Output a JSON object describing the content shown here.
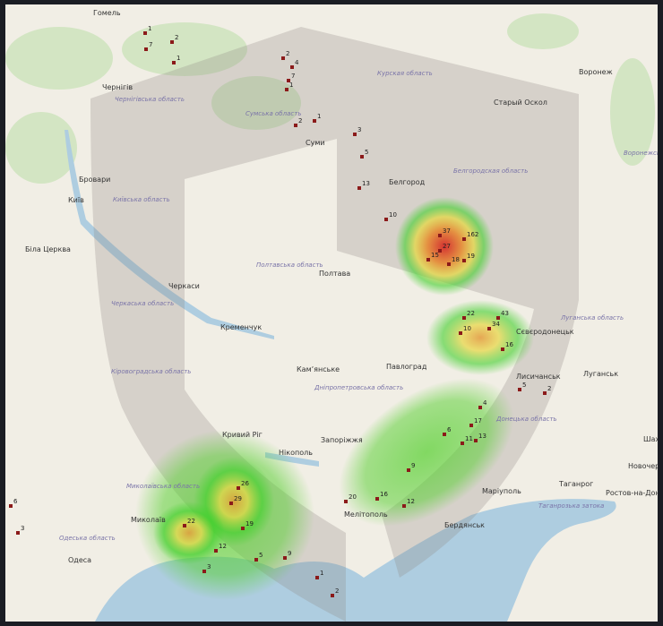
{
  "map": {
    "cities": [
      "Гомель",
      "Чернігів",
      "Бровари",
      "Київ",
      "Біла Церква",
      "Черкаси",
      "Полтава",
      "Суми",
      "Воронеж",
      "Старый Оскол",
      "Белгород",
      "Кременчук",
      "Кривий Ріг",
      "Миколаїв",
      "Одеса",
      "Камʼянське",
      "Павлоград",
      "Запоріжжя",
      "Маріуполь",
      "Таганрог",
      "Ростов-на-Дону",
      "Луганськ",
      "Новочеркаськ",
      "Шахти",
      "Мелітополь",
      "Бердянськ",
      "Нікополь",
      "Лисичанськ",
      "Сєвєродонецьк"
    ],
    "regions": [
      "Чернігівська область",
      "Сумська область",
      "Курская область",
      "Київська область",
      "Полтавська область",
      "Черкаська область",
      "Белгородская область",
      "Воронежская область",
      "Кіровоградська область",
      "Дніпропетровська область",
      "Миколаївська область",
      "Одеська область",
      "Донецька область",
      "Луганська область",
      "Таганрозька затока"
    ],
    "markers": [
      {
        "count": "1"
      },
      {
        "count": "7"
      },
      {
        "count": "2"
      },
      {
        "count": "1"
      },
      {
        "count": "2"
      },
      {
        "count": "4"
      },
      {
        "count": "7"
      },
      {
        "count": "1"
      },
      {
        "count": "2"
      },
      {
        "count": "1"
      },
      {
        "count": "3"
      },
      {
        "count": "5"
      },
      {
        "count": "13"
      },
      {
        "count": "10"
      },
      {
        "count": "37"
      },
      {
        "count": "162"
      },
      {
        "count": "18"
      },
      {
        "count": "19"
      },
      {
        "count": "27"
      },
      {
        "count": "15"
      },
      {
        "count": "43"
      },
      {
        "count": "22"
      },
      {
        "count": "34"
      },
      {
        "count": "10"
      },
      {
        "count": "16"
      },
      {
        "count": "5"
      },
      {
        "count": "2"
      },
      {
        "count": "4"
      },
      {
        "count": "17"
      },
      {
        "count": "13"
      },
      {
        "count": "11"
      },
      {
        "count": "6"
      },
      {
        "count": "9"
      },
      {
        "count": "20"
      },
      {
        "count": "16"
      },
      {
        "count": "12"
      },
      {
        "count": "22"
      },
      {
        "count": "29"
      },
      {
        "count": "26"
      },
      {
        "count": "19"
      },
      {
        "count": "12"
      },
      {
        "count": "3"
      },
      {
        "count": "5"
      },
      {
        "count": "9"
      },
      {
        "count": "1"
      },
      {
        "count": "2"
      },
      {
        "count": "6"
      },
      {
        "count": "3"
      }
    ],
    "colors": {
      "land": "#f1eee5",
      "water": "#aecde0",
      "forest": "#cfe2bf",
      "marker": "#8b1a1a",
      "heat_low": "#3fcf2a",
      "heat_mid": "#f0d23a",
      "heat_high": "#d42020"
    }
  }
}
